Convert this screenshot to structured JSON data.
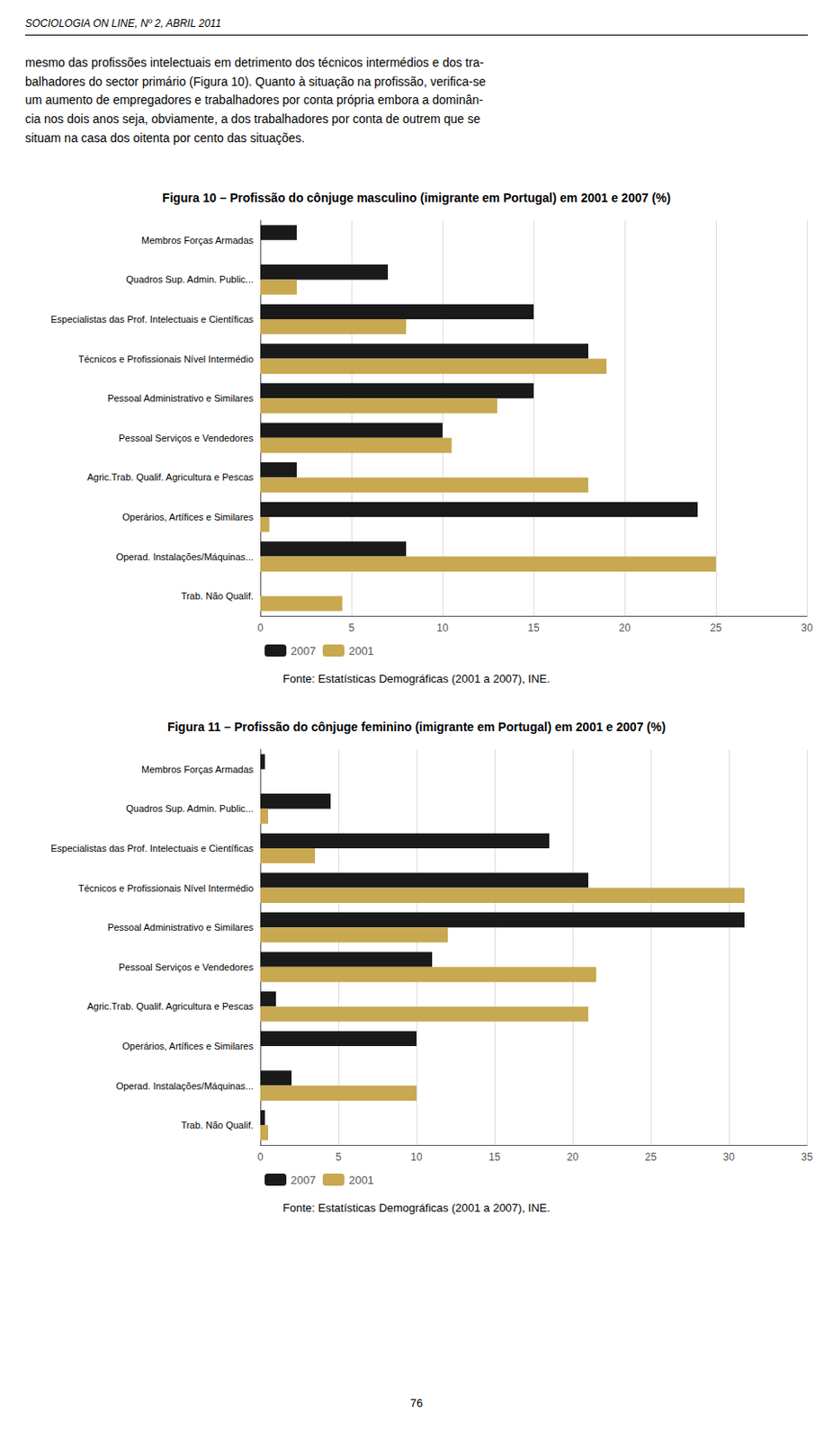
{
  "chart_data": [
    {
      "type": "bar",
      "orientation": "horizontal",
      "title": "Figura 10 – Profissão do cônjuge masculino (imigrante em Portugal) em 2001 e 2007 (%)",
      "annotations": [
        "SOCIOLOGIA ON LINE, Nº 2, ABRIL 2011",
        "mesmo das profissões intelectuais em detrimento dos técnicos intermédios e dos tra-",
        "balhadores do sector primário (Figura 10). Quanto à situação na profissão, verifica-se",
        "um aumento de empregadores e trabalhadores por conta própria embora a dominân-",
        "cia nos dois anos seja, obviamente, a dos trabalhadores por conta de outrem que se",
        "situam na casa dos oitenta por cento das situações.",
        "Fonte: Estatísticas Demográficas (2001 a 2007), INE."
      ],
      "categories": [
        "Membros Forças Armadas",
        "Quadros Sup. Admin. Public...",
        "Especialistas das Prof. Intelectuais e Científicas",
        "Técnicos e Profissionais Nível Intermédio",
        "Pessoal Administrativo e Similares",
        "Pessoal Serviços e Vendedores",
        "Agric.Trab. Qualif. Agricultura e Pescas",
        "Operários, Artífices e Similares",
        "Operad. Instalações/Máquinas...",
        "Trab. Não Qualif."
      ],
      "series": [
        {
          "name": "2007",
          "color": "#1a1a1a",
          "values": [
            2.0,
            7.0,
            15.0,
            18.0,
            15.0,
            10.0,
            2.0,
            24.0,
            8.0,
            0.0
          ]
        },
        {
          "name": "2001",
          "color": "#c8a850",
          "values": [
            0.0,
            2.0,
            8.0,
            19.0,
            13.0,
            10.5,
            18.0,
            0.5,
            25.0,
            4.5
          ]
        }
      ],
      "xlim": [
        0,
        30
      ],
      "xticks": [
        0,
        5,
        10,
        15,
        20,
        25,
        30
      ],
      "grid": true,
      "legend": "lower left"
    },
    {
      "type": "bar",
      "orientation": "horizontal",
      "title": "Figura 11 – Profissão do cônjuge feminino (imigrante em Portugal) em 2001 e 2007 (%)",
      "annotations": [
        "Fonte: Estatísticas Demográficas (2001 a 2007), INE.",
        "76"
      ],
      "categories": [
        "Membros Forças Armadas",
        "Quadros Sup. Admin. Public...",
        "Especialistas das Prof. Intelectuais e Científicas",
        "Técnicos e Profissionais Nível Intermédio",
        "Pessoal Administrativo e Similares",
        "Pessoal Serviços e Vendedores",
        "Agric.Trab. Qualif. Agricultura e Pescas",
        "Operários, Artífices e Similares",
        "Operad. Instalações/Máquinas...",
        "Trab. Não Qualif."
      ],
      "series": [
        {
          "name": "2007",
          "color": "#1a1a1a",
          "values": [
            0.3,
            4.5,
            18.5,
            21.0,
            31.0,
            11.0,
            1.0,
            10.0,
            2.0,
            0.3
          ]
        },
        {
          "name": "2001",
          "color": "#c8a850",
          "values": [
            0.0,
            0.5,
            3.5,
            31.0,
            12.0,
            21.5,
            21.0,
            0.0,
            10.0,
            0.5
          ]
        }
      ],
      "xlim": [
        0,
        35
      ],
      "xticks": [
        0,
        5,
        10,
        15,
        20,
        25,
        30,
        35
      ],
      "grid": true,
      "legend": "lower left"
    }
  ]
}
